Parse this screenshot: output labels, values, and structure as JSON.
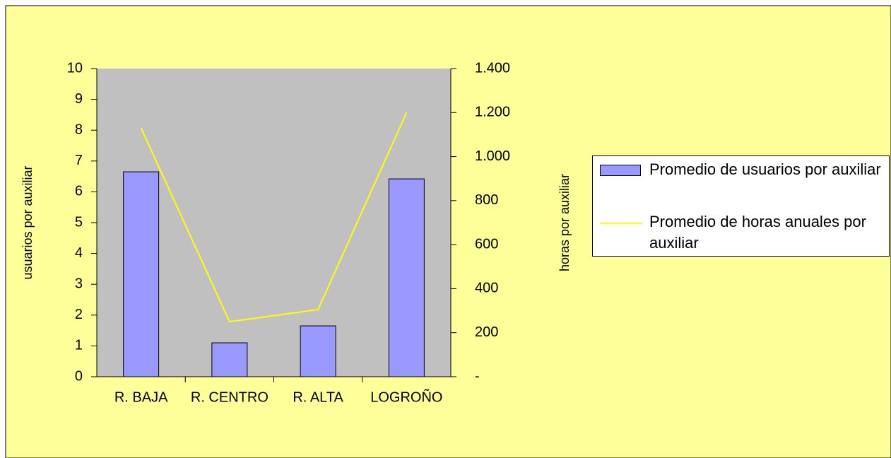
{
  "chart_data": {
    "type": "bar",
    "categories": [
      "R. BAJA",
      "R. CENTRO",
      "R. ALTA",
      "LOGROÑO"
    ],
    "y_label": "usuarios por auxiliar",
    "y2_label": "horas por auxiliar",
    "series": [
      {
        "name": "Promedio de usuarios por auxiliar",
        "type": "bar",
        "color": "#9999ff",
        "values": [
          6.65,
          1.1,
          1.65,
          6.42
        ]
      },
      {
        "name": "Promedio de horas anuales por auxiliar",
        "type": "line",
        "axis": "y2",
        "color": "#ffff00",
        "values": [
          1130,
          250,
          305,
          1200
        ]
      }
    ],
    "ylim": [
      0,
      10
    ],
    "yticks": [
      0,
      1,
      2,
      3,
      4,
      5,
      6,
      7,
      8,
      9,
      10
    ],
    "y2lim": [
      0,
      1400
    ],
    "y2ticks": [
      {
        "value": 0,
        "label": "-"
      },
      200,
      400,
      600,
      800,
      {
        "value": 1000,
        "label": "1.000"
      },
      {
        "value": 1200,
        "label": "1.200"
      },
      {
        "value": 1400,
        "label": "1.400"
      }
    ],
    "legend": "right"
  }
}
